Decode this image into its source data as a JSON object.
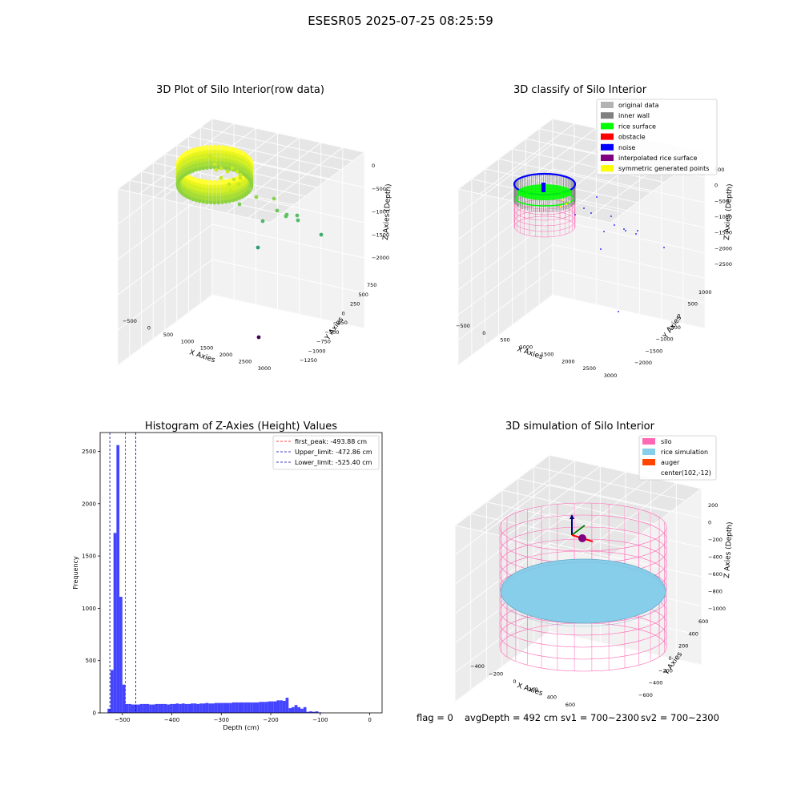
{
  "suptitle": "ESESR05 2025-07-25 08:25:59",
  "footer": {
    "flag": "flag = 0",
    "avg": "avgDepth = 492 cm",
    "sv1": "sv1 = 700~2300",
    "sv2": "sv2 = 700~2300"
  },
  "colors": {
    "original": "#b3b3b3",
    "inner_wall": "#808080",
    "rice_surface": "#00ff00",
    "obstacle": "#ff0000",
    "noise": "#0000ff",
    "interp": "#800080",
    "symmetric": "#ffff00",
    "silo": "#ff69b4",
    "rice_sim": "#87ceeb",
    "auger": "#ff4500",
    "hist_bar": "#4444ff"
  },
  "chart_data": [
    {
      "type": "scatter3d",
      "title": "3D Plot of Silo Interior(row data)",
      "xlabel": "X Axies",
      "ylabel": "Y Axies",
      "zlabel": "Z Axies (Depth)",
      "x_ticks": [
        "−500",
        "0",
        "500",
        "1000",
        "1500",
        "2000",
        "2500",
        "3000"
      ],
      "y_ticks": [
        "−1250",
        "−1000",
        "−750",
        "−500",
        "−250",
        "0",
        "250",
        "500",
        "750"
      ],
      "z_ticks": [
        "−2000",
        "−1500",
        "−1000",
        "−500",
        "0"
      ]
    },
    {
      "type": "scatter3d",
      "title": "3D classify of Silo Interior",
      "xlabel": "X Axies",
      "ylabel": "Y Axies",
      "zlabel": "Z Axies (Depth)",
      "x_ticks": [
        "−500",
        "0",
        "500",
        "1000",
        "1500",
        "2000",
        "2500",
        "3000"
      ],
      "y_ticks": [
        "−2000",
        "−1500",
        "−1000",
        "−500",
        "0",
        "500",
        "1000"
      ],
      "z_ticks": [
        "−2500",
        "−2000",
        "−1500",
        "−1000",
        "−500",
        "0",
        "500"
      ],
      "legend": [
        "original data",
        "inner wall",
        "rice surface",
        "obstacle",
        "noise",
        "interpolated rice surface",
        "symmetric generated points"
      ],
      "legend_placement": "top-right"
    },
    {
      "type": "bar",
      "title": "Histogram of Z-Axies (Height) Values",
      "xlabel": "Depth (cm)",
      "ylabel": "Frequency",
      "xlim": [
        -545,
        25
      ],
      "ylim": [
        0,
        2680
      ],
      "x_ticks": [
        -500,
        -400,
        -300,
        -200,
        -100,
        0
      ],
      "y_ticks": [
        0,
        500,
        1000,
        1500,
        2000,
        2500
      ],
      "bin_width": 6,
      "bin_start": -530,
      "values": [
        40,
        410,
        1720,
        2560,
        1110,
        270,
        85,
        85,
        80,
        80,
        80,
        85,
        85,
        85,
        80,
        80,
        85,
        85,
        85,
        85,
        80,
        85,
        85,
        90,
        85,
        90,
        85,
        85,
        90,
        90,
        85,
        90,
        90,
        95,
        90,
        90,
        95,
        95,
        95,
        95,
        95,
        95,
        100,
        100,
        100,
        100,
        100,
        100,
        100,
        100,
        100,
        105,
        105,
        105,
        110,
        110,
        110,
        120,
        120,
        115,
        145,
        45,
        55,
        75,
        55,
        40,
        55,
        10,
        15,
        10,
        15,
        5
      ],
      "lines": [
        {
          "label": "first_peak: -493.88 cm",
          "x": -493.88,
          "color": "#ff0000"
        },
        {
          "label": "Upper_limit: -472.86 cm",
          "x": -472.86,
          "color": "#0000aa"
        },
        {
          "label": "Lower_limit: -525.40 cm",
          "x": -525.4,
          "color": "#0000aa"
        }
      ],
      "legend_placement": "top-right"
    },
    {
      "type": "surface3d",
      "title": "3D simulation of Silo Interior",
      "xlabel": "X Axies",
      "ylabel": "Y Axies",
      "zlabel": "Z Axies (Depth)",
      "x_ticks": [
        "−400",
        "−200",
        "0",
        "200",
        "400",
        "600"
      ],
      "y_ticks": [
        "−600",
        "−400",
        "−200",
        "0",
        "200",
        "400",
        "600"
      ],
      "z_ticks": [
        "−1000",
        "−800",
        "−600",
        "−400",
        "−200",
        "0",
        "200"
      ],
      "legend": [
        "silo",
        "rice simulation",
        "auger",
        "center(102,-12)"
      ],
      "legend_placement": "top-right"
    }
  ]
}
